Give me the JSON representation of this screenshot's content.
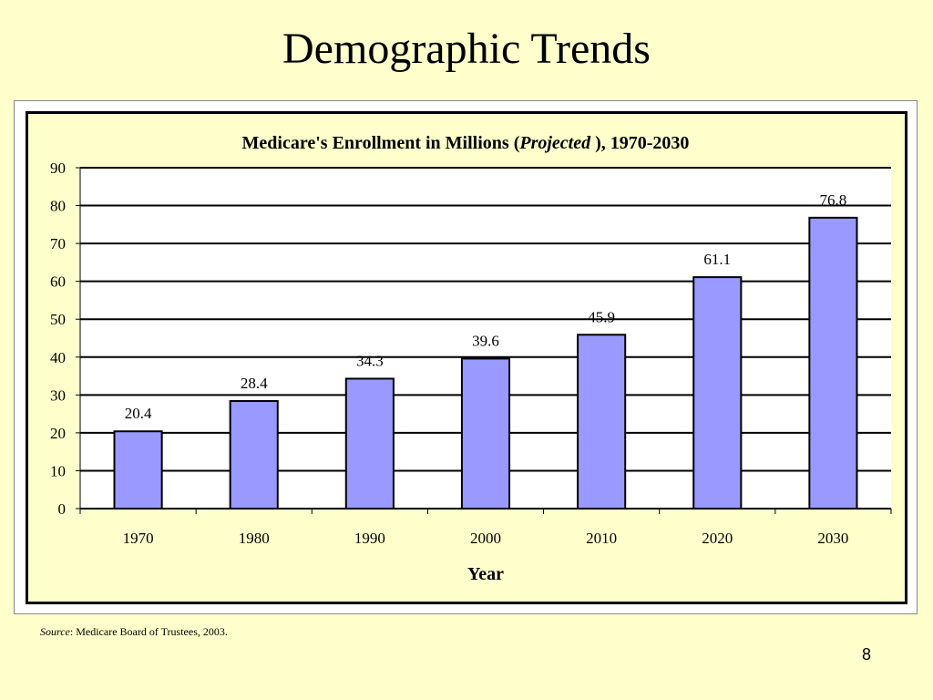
{
  "slide": {
    "title": "Demographic Trends",
    "source_label": "Source",
    "source_text": ": Medicare Board of Trustees, 2003.",
    "page_number": "8"
  },
  "colors": {
    "background": "#ffffcc",
    "bar_fill": "#9999ff",
    "bar_stroke": "#000000",
    "plot_background": "#ffffff"
  },
  "chart_data": {
    "type": "bar",
    "title_prefix": "Medicare's Enrollment in Millions (",
    "title_italic": "Projected",
    "title_suffix": " ), 1970-2030",
    "categories": [
      "1970",
      "1980",
      "1990",
      "2000",
      "2010",
      "2020",
      "2030"
    ],
    "values": [
      20.4,
      28.4,
      34.3,
      39.6,
      45.9,
      61.1,
      76.8
    ],
    "data_labels": [
      "20.4",
      "28.4",
      "34.3",
      "39.6",
      "45.9",
      "61.1",
      "76.8"
    ],
    "xlabel": "Year",
    "ylabel": "",
    "ylim": [
      0,
      90
    ],
    "yticks": [
      0,
      10,
      20,
      30,
      40,
      50,
      60,
      70,
      80,
      90
    ],
    "grid": true,
    "legend": "none"
  }
}
